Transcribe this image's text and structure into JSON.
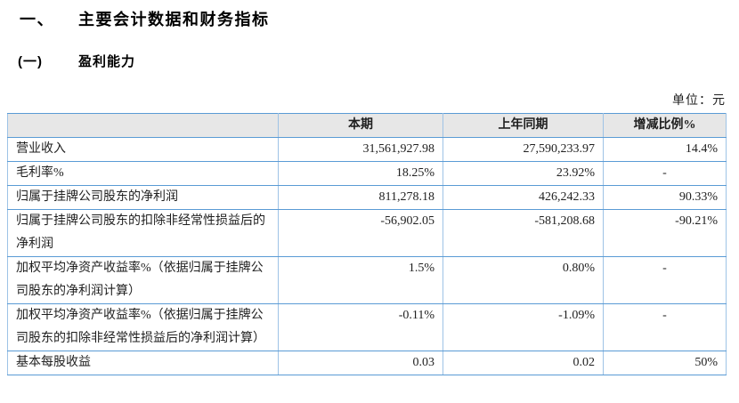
{
  "page": {
    "section_number": "一、",
    "section_title": "主要会计数据和财务指标",
    "subsection_number": "(一)",
    "subsection_title": "盈利能力",
    "unit_label": "单位：元"
  },
  "table": {
    "headers": [
      "",
      "本期",
      "上年同期",
      "增减比例%"
    ],
    "rows": [
      {
        "label": "营业收入",
        "current": "31,561,927.98",
        "prior": "27,590,233.97",
        "change": "14.4%"
      },
      {
        "label": "毛利率%",
        "current": "18.25%",
        "prior": "23.92%",
        "change": "-"
      },
      {
        "label": "归属于挂牌公司股东的净利润",
        "current": "811,278.18",
        "prior": "426,242.33",
        "change": "90.33%"
      },
      {
        "label": "归属于挂牌公司股东的扣除非经常性损益后的净利润",
        "current": "-56,902.05",
        "prior": "-581,208.68",
        "change": "-90.21%"
      },
      {
        "label": "加权平均净资产收益率%（依据归属于挂牌公司股东的净利润计算）",
        "current": "1.5%",
        "prior": "0.80%",
        "change": "-"
      },
      {
        "label": "加权平均净资产收益率%（依据归属于挂牌公司股东的扣除非经常性损益后的净利润计算）",
        "current": "-0.11%",
        "prior": "-1.09%",
        "change": "-"
      },
      {
        "label": "基本每股收益",
        "current": "0.03",
        "prior": "0.02",
        "change": "50%"
      }
    ]
  },
  "colors": {
    "border_horizontal": "#5a9bd5",
    "border_vertical": "#9ec3e6",
    "header_background": "#e7e7e7",
    "text": "#1f1f1f"
  }
}
